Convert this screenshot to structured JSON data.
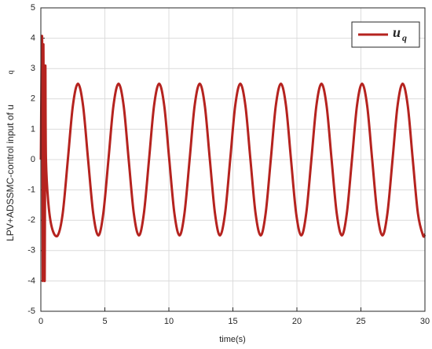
{
  "chart_data": {
    "type": "line",
    "x_label": "time(s)",
    "y_label": "LPV+ADSSMC-control input of u",
    "y_label_sub": "q",
    "xlim": [
      0,
      30
    ],
    "ylim": [
      -5,
      5
    ],
    "xticks": [
      0,
      5,
      10,
      15,
      20,
      25,
      30
    ],
    "yticks": [
      -5,
      -4,
      -3,
      -2,
      -1,
      0,
      1,
      2,
      3,
      4,
      5
    ],
    "grid": true,
    "legend": "upper right",
    "x": [
      0,
      0.1,
      0.15,
      0.2,
      0.3,
      0.35,
      0.4,
      0.6,
      0.9,
      1.32,
      1.71,
      2.11,
      2.5,
      2.9,
      3.3,
      3.69,
      4.09,
      4.49,
      4.88,
      5.28,
      5.67,
      6.07,
      6.47,
      6.86,
      7.26,
      7.66,
      8.05,
      8.45,
      8.84,
      9.24,
      9.64,
      10.03,
      10.43,
      10.83,
      11.22,
      11.62,
      12.01,
      12.41,
      12.81,
      13.2,
      13.6,
      13.99,
      14.39,
      14.79,
      15.18,
      15.58,
      15.98,
      16.37,
      16.77,
      17.17,
      17.56,
      17.96,
      18.35,
      18.75,
      19.15,
      19.54,
      19.94,
      20.34,
      20.73,
      21.13,
      21.52,
      21.92,
      22.32,
      22.71,
      23.11,
      23.51,
      23.9,
      24.3,
      24.69,
      25.09,
      25.49,
      25.88,
      26.28,
      26.68,
      27.07,
      27.47,
      27.86,
      28.26,
      28.66,
      29.05,
      29.45,
      29.85,
      30
    ],
    "series": [
      {
        "name": "u",
        "name_sub": "q",
        "color": "#b5231f",
        "values": [
          0,
          4,
          -4,
          3.8,
          -4,
          3,
          0,
          -1.5,
          -2.3,
          -2.5,
          -1.77,
          0,
          1.77,
          2.5,
          1.77,
          0,
          -1.77,
          -2.5,
          -1.77,
          0,
          1.77,
          2.5,
          1.77,
          0,
          -1.77,
          -2.5,
          -1.77,
          0,
          1.77,
          2.5,
          1.77,
          0,
          -1.77,
          -2.5,
          -1.77,
          0,
          1.77,
          2.5,
          1.77,
          0,
          -1.77,
          -2.5,
          -1.77,
          0,
          1.77,
          2.5,
          1.77,
          0,
          -1.77,
          -2.5,
          -1.77,
          0,
          1.77,
          2.5,
          1.77,
          0,
          -1.77,
          -2.5,
          -1.77,
          0,
          1.77,
          2.5,
          1.77,
          0,
          -1.77,
          -2.5,
          -1.77,
          0,
          1.77,
          2.5,
          1.77,
          0,
          -1.77,
          -2.5,
          -1.77,
          0,
          1.77,
          2.5,
          1.77,
          0,
          -1.77,
          -2.5,
          -2.46
        ]
      }
    ]
  }
}
